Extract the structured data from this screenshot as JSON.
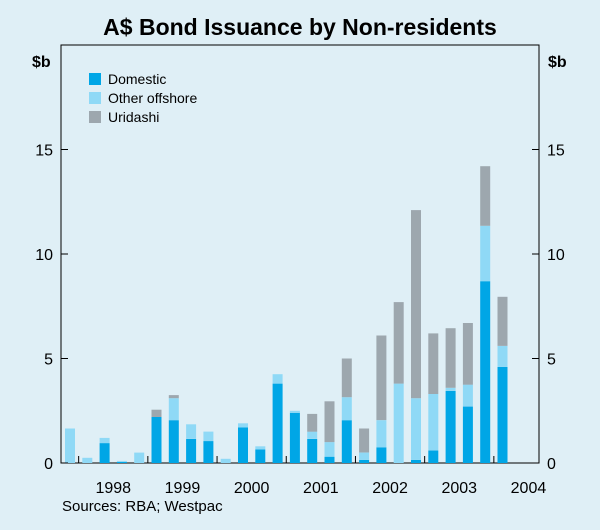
{
  "chart_data": {
    "type": "bar",
    "stacked": true,
    "title": "A$ Bond Issuance by Non-residents",
    "ylabel_left": "$b",
    "ylabel_right": "$b",
    "ylim": [
      0,
      20
    ],
    "yticks": [
      0,
      5,
      10,
      15
    ],
    "year_labels": [
      "1998",
      "1999",
      "2000",
      "2001",
      "2002",
      "2003",
      "2004"
    ],
    "quarters": [
      "1997Q4",
      "1998Q1",
      "1998Q2",
      "1998Q3",
      "1998Q4",
      "1999Q1",
      "1999Q2",
      "1999Q3",
      "1999Q4",
      "2000Q1",
      "2000Q2",
      "2000Q3",
      "2000Q4",
      "2001Q1",
      "2001Q2",
      "2001Q3",
      "2001Q4",
      "2002Q1",
      "2002Q2",
      "2002Q3",
      "2002Q4",
      "2003Q1",
      "2003Q2",
      "2003Q3",
      "2003Q4",
      "2004Q1"
    ],
    "series": [
      {
        "name": "Domestic",
        "color": "#00a6e6",
        "values": [
          0,
          0,
          0.95,
          0.05,
          0,
          2.2,
          2.05,
          1.15,
          1.05,
          0,
          1.7,
          0.65,
          3.8,
          2.4,
          1.15,
          0.3,
          2.05,
          0.15,
          0.75,
          0,
          0.15,
          0.6,
          3.45,
          2.7,
          8.7,
          4.6
        ]
      },
      {
        "name": "Other offshore",
        "color": "#8fd9f6",
        "values": [
          1.65,
          0.25,
          0.25,
          0.05,
          0.5,
          0,
          1.05,
          0.7,
          0.45,
          0.2,
          0.2,
          0.15,
          0.45,
          0.1,
          0.35,
          0.7,
          1.1,
          0.35,
          1.3,
          3.8,
          2.95,
          2.7,
          0.15,
          1.05,
          2.65,
          1.0
        ]
      },
      {
        "name": "Uridashi",
        "color": "#9da7ae",
        "values": [
          0,
          0,
          0,
          0,
          0,
          0.35,
          0.15,
          0,
          0,
          0,
          0,
          0,
          0,
          0,
          0.85,
          1.95,
          1.85,
          1.15,
          4.05,
          3.9,
          9.0,
          2.9,
          2.85,
          2.95,
          2.85,
          2.35
        ]
      }
    ],
    "legend": [
      "Domestic",
      "Other offshore",
      "Uridashi"
    ],
    "legend_position": "top-left",
    "grid": false
  },
  "source": "Sources: RBA; Westpac"
}
